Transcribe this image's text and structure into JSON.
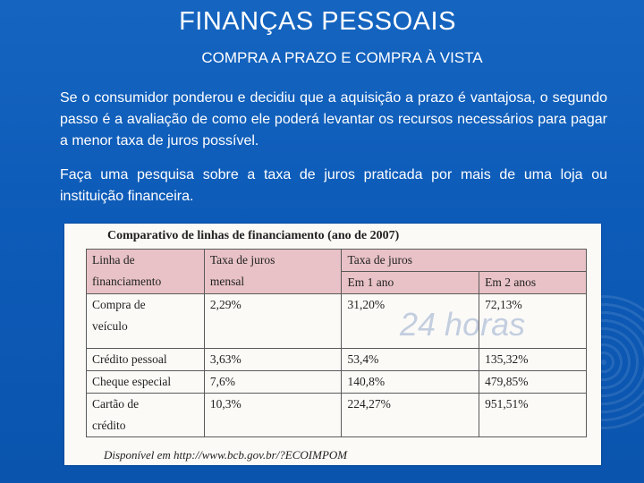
{
  "title": "FINANÇAS PESSOAIS",
  "subtitle": "COMPRA A PRAZO E COMPRA À VISTA",
  "paragraph1": "Se o consumidor ponderou e decidiu que a aquisição a prazo é vantajosa, o segundo passo é a avaliação de como ele poderá levantar os recursos necessários para pagar a menor taxa de juros possível.",
  "paragraph2": "Faça uma pesquisa sobre a taxa de juros praticada por mais de uma loja ou instituição financeira.",
  "table": {
    "title": "Comparativo de linhas de financiamento (ano de 2007)",
    "header": {
      "col1_line1": "Linha de",
      "col1_line2": "financiamento",
      "col2_line1": "Taxa de juros",
      "col2_line2": "mensal",
      "col3_group": "Taxa de juros",
      "col3_sub1": "Em 1 ano",
      "col3_sub2": "Em 2 anos"
    },
    "rows": [
      {
        "line1": "Compra de",
        "line2": "veículo",
        "monthly": "2,29%",
        "year1": "31,20%",
        "year2": "72,13%"
      },
      {
        "line1": "Crédito pessoal",
        "line2": "",
        "monthly": "3,63%",
        "year1": "53,4%",
        "year2": "135,32%"
      },
      {
        "line1": "Cheque especial",
        "line2": "",
        "monthly": "7,6%",
        "year1": "140,8%",
        "year2": "479,85%"
      },
      {
        "line1": "Cartão de",
        "line2": "crédito",
        "monthly": "10,3%",
        "year1": "224,27%",
        "year2": "951,51%"
      }
    ],
    "source": "Disponível em http://www.bcb.gov.br/?ECOIMPOM",
    "watermark": "24 horas"
  }
}
